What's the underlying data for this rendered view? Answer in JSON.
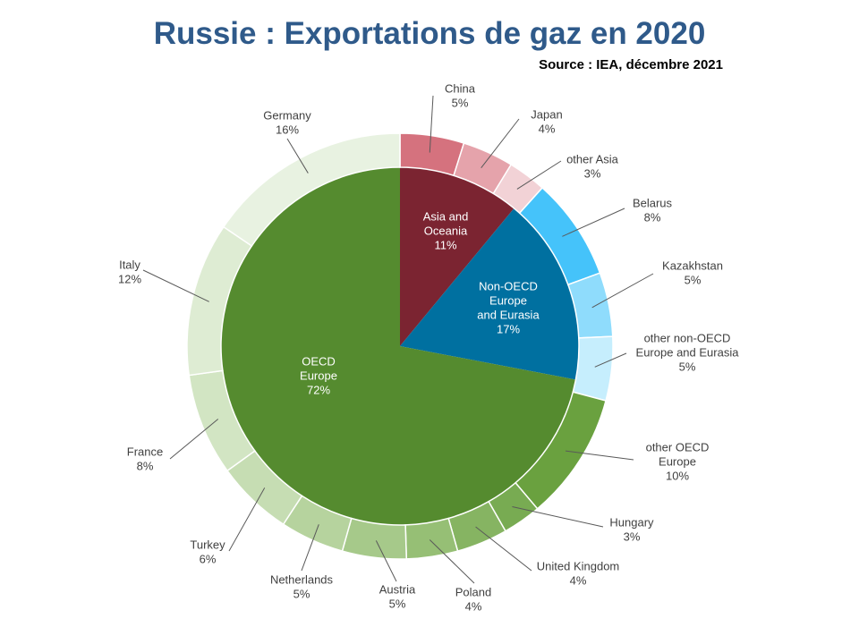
{
  "title": "Russie : Exportations de gaz en 2020",
  "source": "Source : IEA, décembre 2021",
  "chart_data": {
    "type": "pie",
    "inner": [
      {
        "name": "Asia and Oceania",
        "lines": [
          "Asia and",
          "Oceania",
          "11%"
        ],
        "value": 11,
        "color": "#7b2431"
      },
      {
        "name": "Non-OECD Europe and Eurasia",
        "lines": [
          "Non-OECD",
          "Europe",
          "and Eurasia",
          "17%"
        ],
        "value": 17,
        "color": "#0070a0"
      },
      {
        "name": "OECD Europe",
        "lines": [
          "OECD",
          "Europe",
          "72%"
        ],
        "value": 72,
        "color": "#558b2f"
      }
    ],
    "outer": [
      {
        "name": "China",
        "lines": [
          "China",
          "5%"
        ],
        "value": 5,
        "color": "#d5727e"
      },
      {
        "name": "Japan",
        "lines": [
          "Japan",
          "4%"
        ],
        "value": 4,
        "color": "#e5a3ab"
      },
      {
        "name": "other Asia",
        "lines": [
          "other Asia",
          "3%"
        ],
        "value": 3,
        "color": "#f2d2d6"
      },
      {
        "name": "Belarus",
        "lines": [
          "Belarus",
          "8%"
        ],
        "value": 8,
        "color": "#45c3fa"
      },
      {
        "name": "Kazakhstan",
        "lines": [
          "Kazakhstan",
          "5%"
        ],
        "value": 5,
        "color": "#8fdcfc"
      },
      {
        "name": "other non-OECD Europe and Eurasia",
        "lines": [
          "other non-OECD",
          "Europe and Eurasia",
          "5%"
        ],
        "value": 5,
        "color": "#c6eefd"
      },
      {
        "name": "other OECD Europe",
        "lines": [
          "other OECD",
          "Europe",
          "10%"
        ],
        "value": 10,
        "color": "#6aa13f"
      },
      {
        "name": "Hungary",
        "lines": [
          "Hungary",
          "3%"
        ],
        "value": 3,
        "color": "#78ab52"
      },
      {
        "name": "United Kingdom",
        "lines": [
          "United Kingdom",
          "4%"
        ],
        "value": 4,
        "color": "#86b462"
      },
      {
        "name": "Poland",
        "lines": [
          "Poland",
          "4%"
        ],
        "value": 4,
        "color": "#96bf75"
      },
      {
        "name": "Austria",
        "lines": [
          "Austria",
          "5%"
        ],
        "value": 5,
        "color": "#a6c98a"
      },
      {
        "name": "Netherlands",
        "lines": [
          "Netherlands",
          "5%"
        ],
        "value": 5,
        "color": "#b6d39e"
      },
      {
        "name": "Turkey",
        "lines": [
          "Turkey",
          "6%"
        ],
        "value": 6,
        "color": "#c6ddb3"
      },
      {
        "name": "France",
        "lines": [
          "France",
          "8%"
        ],
        "value": 8,
        "color": "#d2e5c3"
      },
      {
        "name": "Italy",
        "lines": [
          "Italy",
          "12%"
        ],
        "value": 12,
        "color": "#deecd3"
      },
      {
        "name": "Germany",
        "lines": [
          "Germany",
          "16%"
        ],
        "value": 16,
        "color": "#e8f2e1"
      }
    ]
  }
}
